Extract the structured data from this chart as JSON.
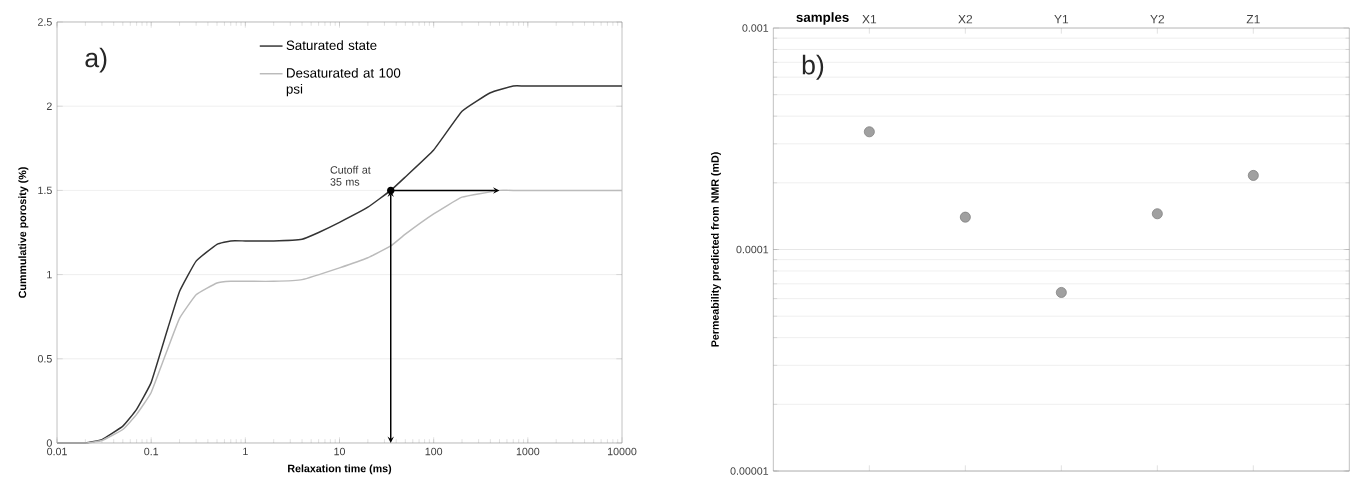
{
  "chart_data": [
    {
      "type": "line",
      "xlabel": "Relaxation time (ms)",
      "ylabel": "Cummulative porosity (%)",
      "log": "x",
      "grid": "y",
      "legend": "top",
      "xlim": [
        0.01,
        10000
      ],
      "xticks": [
        0.01,
        0.1,
        1,
        10,
        100,
        1000,
        10000
      ],
      "ylim": [
        0,
        2.5
      ],
      "yticks": [
        0,
        0.5,
        1,
        1.5,
        2,
        2.5
      ],
      "annotations": [
        "a)",
        {
          "text": "Cutoff at 35 ms",
          "x": 35,
          "y": 1.5
        }
      ],
      "series": [
        {
          "name": "Saturated state",
          "color": "#333333",
          "x": [
            0.01,
            0.02,
            0.03,
            0.05,
            0.07,
            0.1,
            0.15,
            0.2,
            0.3,
            0.5,
            0.7,
            1,
            2,
            4,
            6,
            10,
            20,
            35,
            50,
            100,
            200,
            400,
            700,
            1000,
            10000
          ],
          "values": [
            0,
            0,
            0.02,
            0.1,
            0.2,
            0.36,
            0.68,
            0.9,
            1.08,
            1.18,
            1.2,
            1.2,
            1.2,
            1.21,
            1.25,
            1.31,
            1.4,
            1.5,
            1.58,
            1.74,
            1.97,
            2.08,
            2.12,
            2.12,
            2.12
          ]
        },
        {
          "name": "Desaturated at 100 psi",
          "color": "#bbbbbb",
          "x": [
            0.01,
            0.02,
            0.03,
            0.05,
            0.07,
            0.1,
            0.15,
            0.2,
            0.3,
            0.5,
            0.7,
            1,
            2,
            4,
            10,
            20,
            35,
            50,
            100,
            200,
            500,
            700,
            10000
          ],
          "values": [
            0,
            0,
            0.015,
            0.08,
            0.17,
            0.3,
            0.56,
            0.74,
            0.88,
            0.95,
            0.96,
            0.96,
            0.96,
            0.97,
            1.04,
            1.1,
            1.17,
            1.24,
            1.36,
            1.46,
            1.5,
            1.5,
            1.5
          ]
        }
      ]
    },
    {
      "type": "scatter",
      "xlabel": "samples",
      "ylabel": "Permeability predicted from NMR (mD)",
      "log": true,
      "grid": "y",
      "marker": "circle",
      "ylim": [
        1e-05,
        0.001
      ],
      "yticks": [
        {
          "value": 1e-05,
          "label": "0.00001"
        },
        {
          "value": 0.0001,
          "label": "0.0001"
        },
        {
          "value": 0.001,
          "label": "0.001"
        }
      ],
      "annotations": [
        "b)"
      ],
      "categories": [
        "X1",
        "X2",
        "Y1",
        "Y2",
        "Z1"
      ],
      "values": [
        0.00034,
        0.00014,
        6.4e-05,
        0.000145,
        0.000216
      ],
      "color": "#a0a0a0"
    }
  ]
}
